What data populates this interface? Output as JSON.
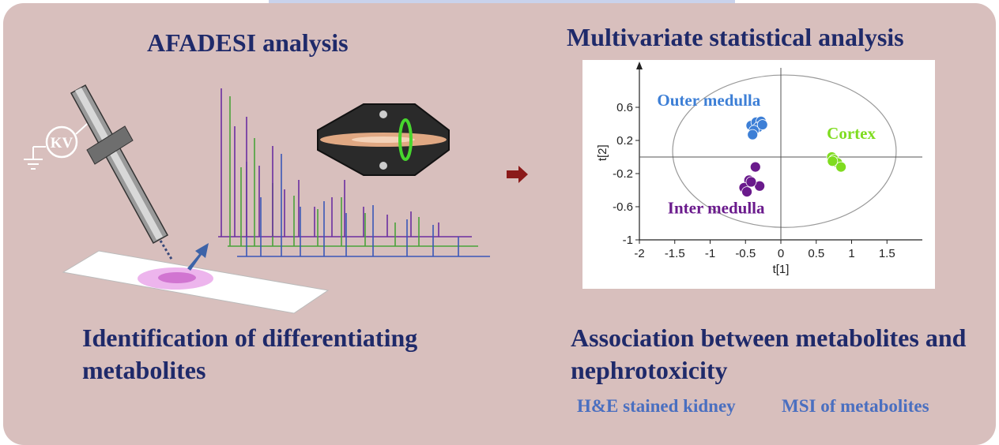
{
  "titles": {
    "afadesi": "AFADESI analysis",
    "multivariate": "Multivariate statistical analysis",
    "identification": "Identification of differentiating metabolites",
    "association": "Association between metabolites and nephrotoxicity"
  },
  "subtitles": {
    "he": "H&E stained kidney",
    "msi": "MSI of metabolites"
  },
  "illustration": {
    "voltage_label": "KV"
  },
  "colors": {
    "panel": "#d8bfbd",
    "title": "#1f2a6a",
    "subtitle": "#4a6fc0",
    "arrow": "#8b1a1a",
    "outer": "#3d7fd6",
    "cortex": "#7fdc1f",
    "inter": "#6a1a8c"
  },
  "chart_data": {
    "type": "scatter",
    "xlabel": "t[1]",
    "ylabel": "t[2]",
    "xlim": [
      -2,
      2
    ],
    "ylim": [
      -1,
      1
    ],
    "xticks": [
      "-2",
      "-1.5",
      "-1",
      "-0.5",
      "0",
      "0.5",
      "1",
      "1.5"
    ],
    "yticks": [
      "0.6",
      "0.2",
      "-0.2",
      "-0.6",
      "-1"
    ],
    "ellipse": {
      "cx": 0.05,
      "cy": 0.07,
      "rx": 1.58,
      "ry": 0.92
    },
    "series": [
      {
        "name": "Outer medulla",
        "color": "#3d7fd6",
        "points": [
          [
            -0.42,
            0.38
          ],
          [
            -0.35,
            0.42
          ],
          [
            -0.28,
            0.43
          ],
          [
            -0.32,
            0.36
          ],
          [
            -0.38,
            0.32
          ],
          [
            -0.26,
            0.39
          ],
          [
            -0.4,
            0.27
          ]
        ]
      },
      {
        "name": "Cortex",
        "color": "#7fdc1f",
        "points": [
          [
            0.72,
            0.0
          ],
          [
            0.75,
            -0.03
          ],
          [
            0.8,
            -0.07
          ],
          [
            0.85,
            -0.12
          ],
          [
            0.73,
            -0.05
          ]
        ]
      },
      {
        "name": "Inter medulla",
        "color": "#6a1a8c",
        "points": [
          [
            -0.36,
            -0.12
          ],
          [
            -0.45,
            -0.28
          ],
          [
            -0.52,
            -0.37
          ],
          [
            -0.3,
            -0.35
          ],
          [
            -0.48,
            -0.42
          ],
          [
            -0.42,
            -0.3
          ]
        ]
      }
    ],
    "labels": [
      {
        "text": "Outer medulla",
        "color": "#3d7fd6",
        "x": -1.75,
        "y": 0.62
      },
      {
        "text": "Cortex",
        "color": "#7fdc1f",
        "x": 0.65,
        "y": 0.22
      },
      {
        "text": "Inter medulla",
        "color": "#6a1a8c",
        "x": -1.6,
        "y": -0.68
      }
    ]
  }
}
